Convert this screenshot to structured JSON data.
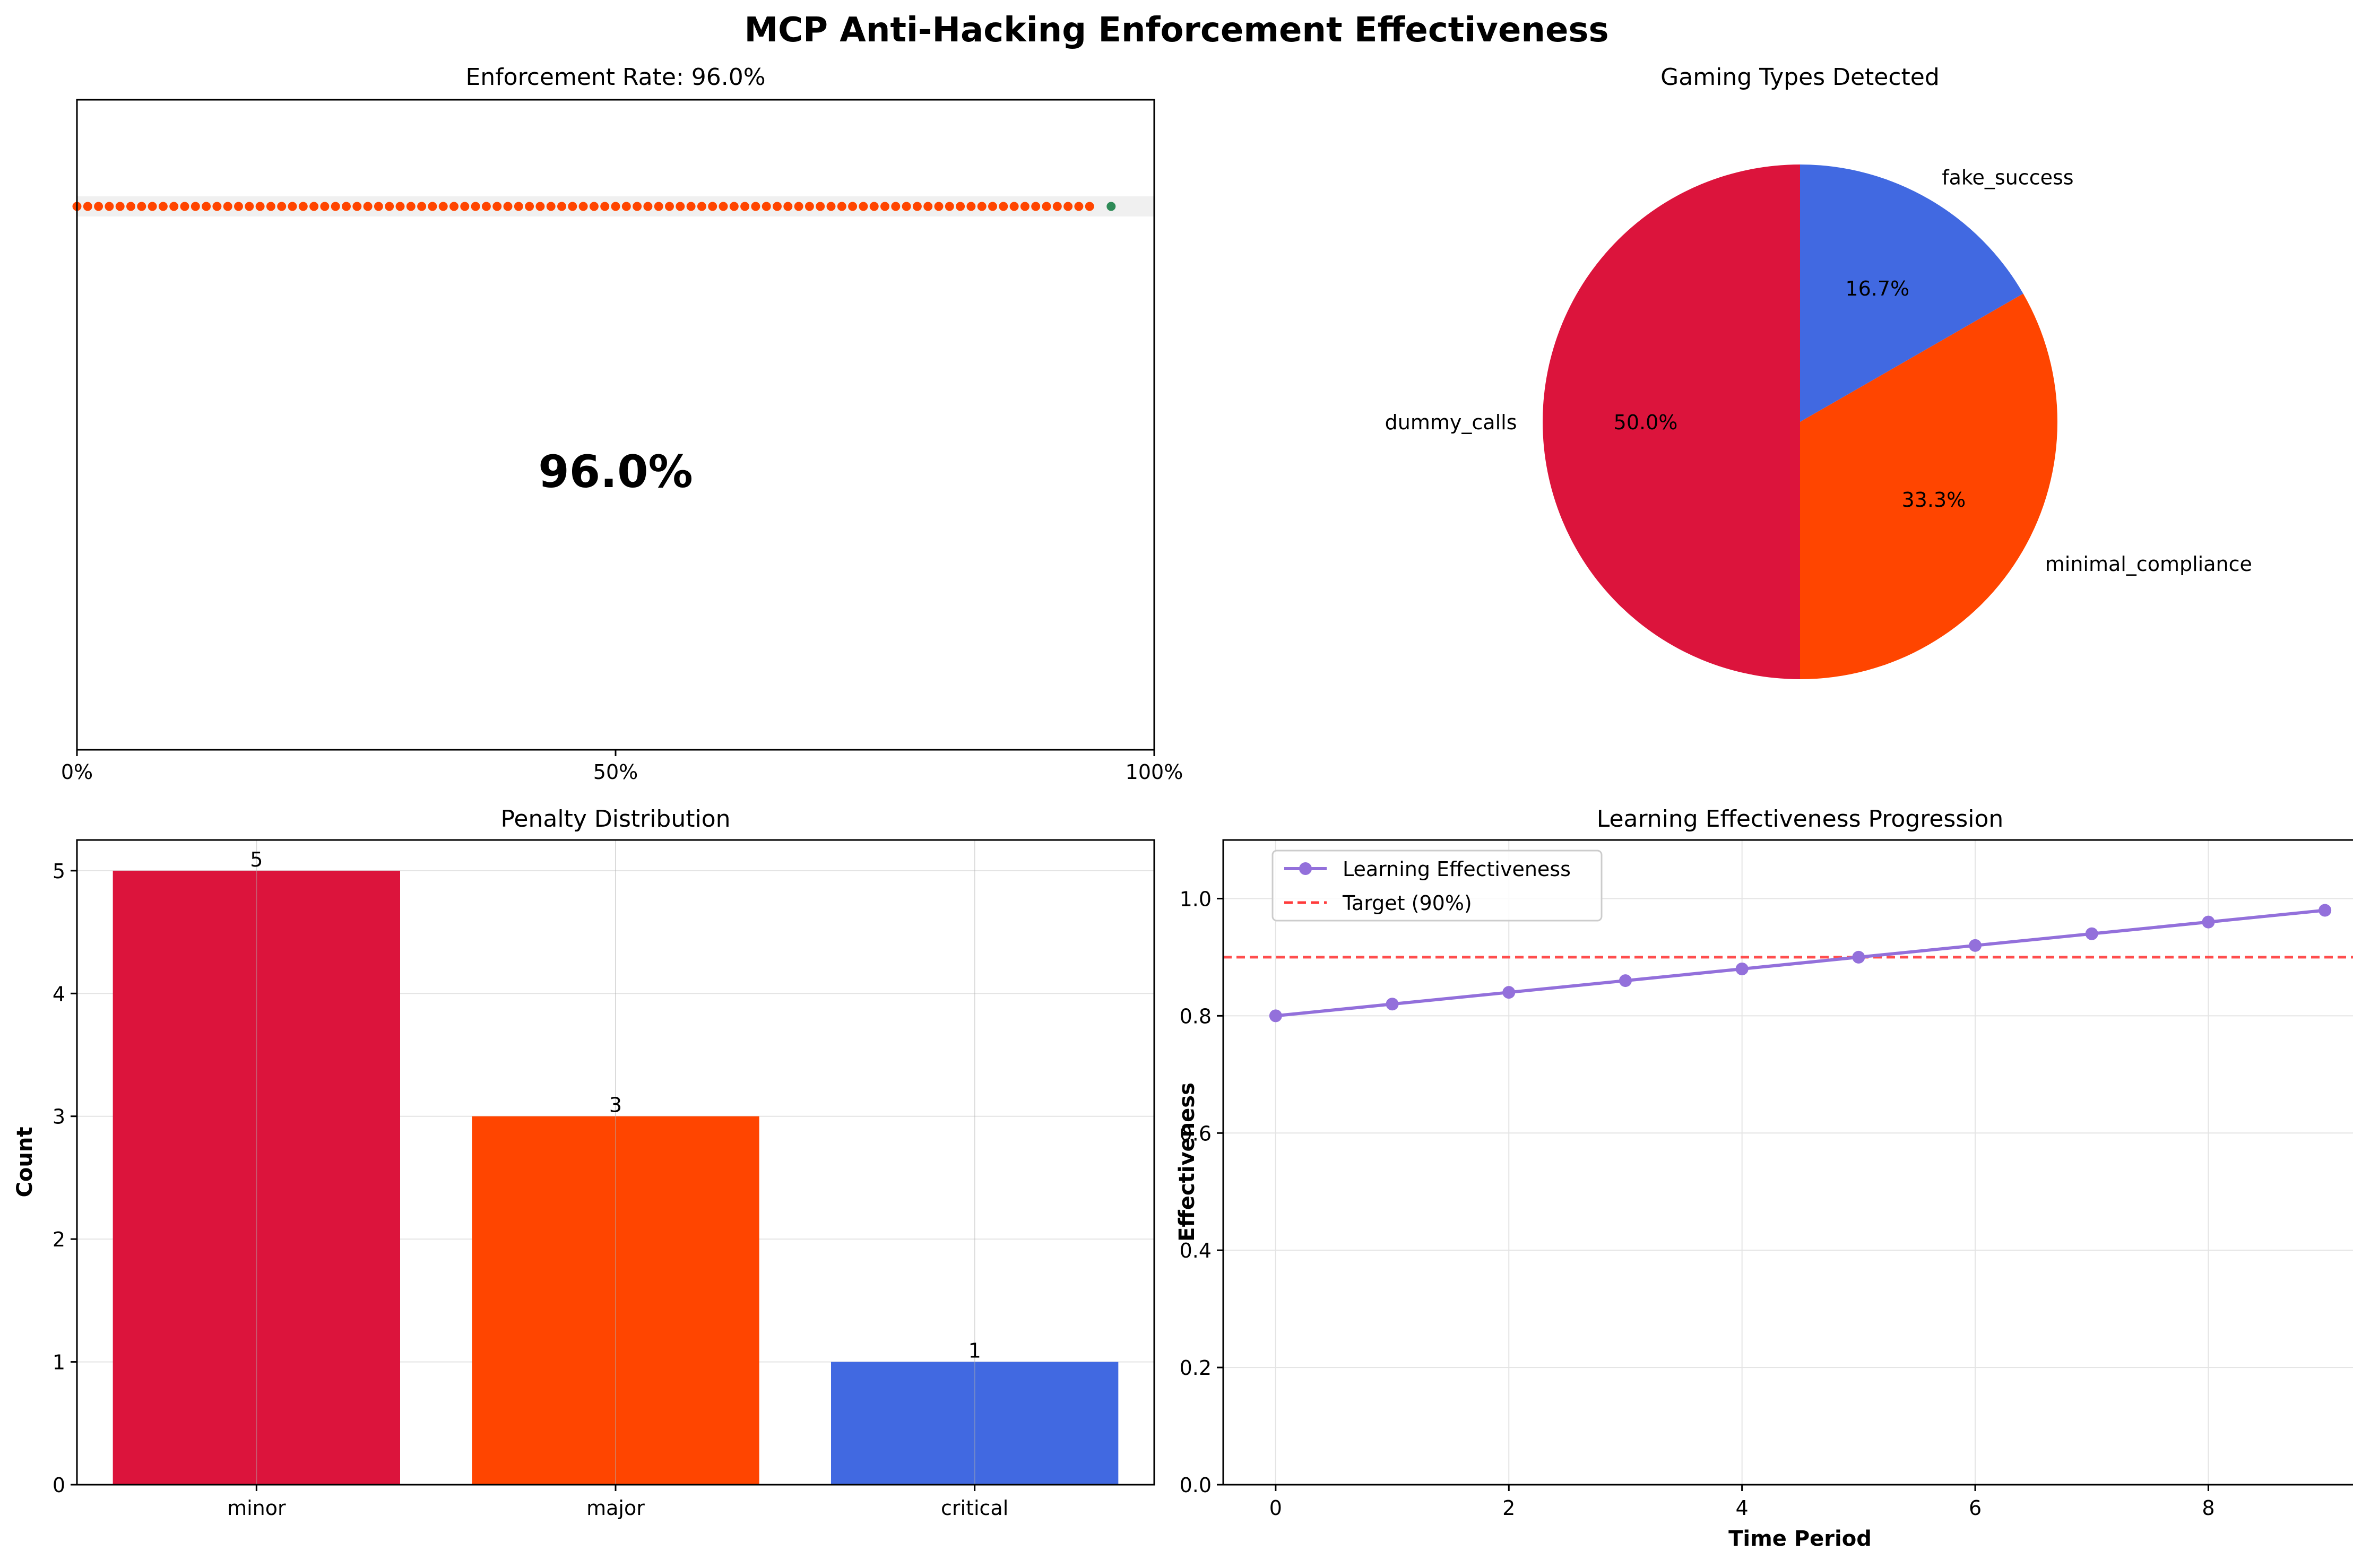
{
  "figure": {
    "suptitle": "MCP Anti-Hacking Enforcement Effectiveness"
  },
  "chart_data": [
    {
      "type": "scatter",
      "title": "Enforcement Rate: 96.0%",
      "center_label": "96.0%",
      "x_tick_labels": [
        "0%",
        "50%",
        "100%"
      ],
      "xlim": [
        0,
        100
      ],
      "dot_row": {
        "count_red": 95,
        "x_start": 0,
        "x_step": 1,
        "green_x": 96,
        "background_band_end": 100
      },
      "colors": {
        "red": "#ff4500",
        "green": "#2e8b57",
        "band": "#f0f0f0"
      },
      "grid": false
    },
    {
      "type": "pie",
      "title": "Gaming Types Detected",
      "slices": [
        {
          "label": "dummy_calls",
          "value": 50.0,
          "pct_label": "50.0%",
          "color": "#dc143c"
        },
        {
          "label": "minimal_compliance",
          "value": 33.3,
          "pct_label": "33.3%",
          "color": "#ff4500"
        },
        {
          "label": "fake_success",
          "value": 16.7,
          "pct_label": "16.7%",
          "color": "#4169e1"
        }
      ],
      "start_angle_deg": 90,
      "direction": "counterclockwise"
    },
    {
      "type": "bar",
      "title": "Penalty Distribution",
      "categories": [
        "minor",
        "major",
        "critical"
      ],
      "values": [
        5,
        3,
        1
      ],
      "value_labels": [
        "5",
        "3",
        "1"
      ],
      "colors": [
        "#dc143c",
        "#ff4500",
        "#4169e1"
      ],
      "xlabel": "",
      "ylabel": "Count",
      "ylim": [
        0,
        5.25
      ],
      "y_ticks": [
        0,
        1,
        2,
        3,
        4,
        5
      ],
      "grid": true
    },
    {
      "type": "line",
      "title": "Learning Effectiveness Progression",
      "xlabel": "Time Period",
      "ylabel": "Effectiveness",
      "xlim": [
        -0.45,
        9.45
      ],
      "ylim": [
        0,
        1.1
      ],
      "x_ticks": [
        0,
        2,
        4,
        6,
        8
      ],
      "y_ticks": [
        0.0,
        0.2,
        0.4,
        0.6,
        0.8,
        1.0
      ],
      "y_tick_labels": [
        "0.0",
        "0.2",
        "0.4",
        "0.6",
        "0.8",
        "1.0"
      ],
      "series": [
        {
          "name": "Learning Effectiveness",
          "x": [
            0,
            1,
            2,
            3,
            4,
            5,
            6,
            7,
            8,
            9
          ],
          "values": [
            0.8,
            0.82,
            0.84,
            0.86,
            0.88,
            0.9,
            0.92,
            0.94,
            0.96,
            0.98
          ],
          "color": "#9370db"
        }
      ],
      "reference_line": {
        "name": "Target (90%)",
        "y": 0.9,
        "color": "#ff3b3b"
      },
      "legend": "top-left",
      "grid": true
    }
  ]
}
